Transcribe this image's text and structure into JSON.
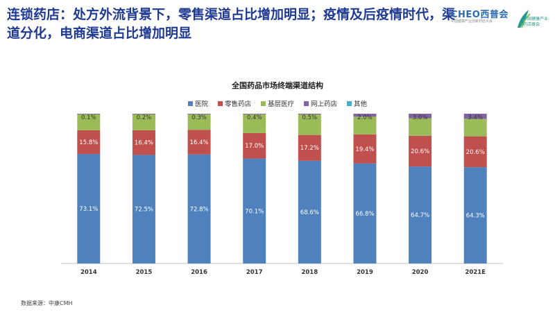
{
  "slide": {
    "title": "连锁药店：处方外流背景下，零售渠道占比增加明显；疫情及后疫情时代，渠道分化，电商渠道占比增加明显",
    "source": "数据来源：中康CMH"
  },
  "logos": {
    "cheo": "CHEO西普会",
    "cheo_sub": "中国健康产业创新药店大会",
    "right": "中国健康产业 药店峰会"
  },
  "colors": {
    "title": "#1f3a93",
    "hospital": "#4f81bd",
    "retail": "#c0504d",
    "primary": "#9bbb59",
    "online": "#8064a2",
    "other": "#4bacc6"
  },
  "chart_data": {
    "type": "bar",
    "stacked": true,
    "title": "全国药品市场终端渠道结构",
    "categories": [
      "2014",
      "2015",
      "2016",
      "2017",
      "2018",
      "2019",
      "2020",
      "2021E"
    ],
    "series": [
      {
        "name": "医院",
        "color": "#4f81bd",
        "values": [
          73.1,
          72.5,
          72.8,
          70.1,
          68.6,
          66.8,
          64.7,
          64.3
        ]
      },
      {
        "name": "零售药店",
        "color": "#c0504d",
        "values": [
          15.8,
          16.4,
          16.4,
          17.0,
          17.2,
          19.4,
          20.6,
          20.6
        ]
      },
      {
        "name": "基层医疗",
        "color": "#9bbb59",
        "values": [
          11.0,
          10.9,
          10.5,
          12.5,
          13.7,
          11.8,
          11.7,
          11.7
        ]
      },
      {
        "name": "网上药店",
        "color": "#8064a2",
        "values": [
          0.1,
          0.2,
          0.3,
          0.4,
          0.5,
          2.0,
          3.0,
          3.4
        ]
      },
      {
        "name": "其他",
        "color": "#4bacc6",
        "values": [
          0.0,
          0.0,
          0.0,
          0.0,
          0.0,
          0.0,
          0.0,
          0.0
        ]
      }
    ],
    "labels": {
      "医院": [
        "73.1%",
        "72.5%",
        "72.8%",
        "70.1%",
        "68.6%",
        "66.8%",
        "64.7%",
        "64.3%"
      ],
      "零售药店": [
        "15.8%",
        "16.4%",
        "16.4%",
        "17.0%",
        "17.2%",
        "19.4%",
        "20.6%",
        "20.6%"
      ],
      "网上药店": [
        "0.1%",
        "0.2%",
        "0.3%",
        "0.4%",
        "0.5%",
        "2.0%",
        "3.0%",
        "3.4%"
      ]
    },
    "ylim": [
      0,
      100
    ],
    "legend": "top",
    "grid": false
  }
}
